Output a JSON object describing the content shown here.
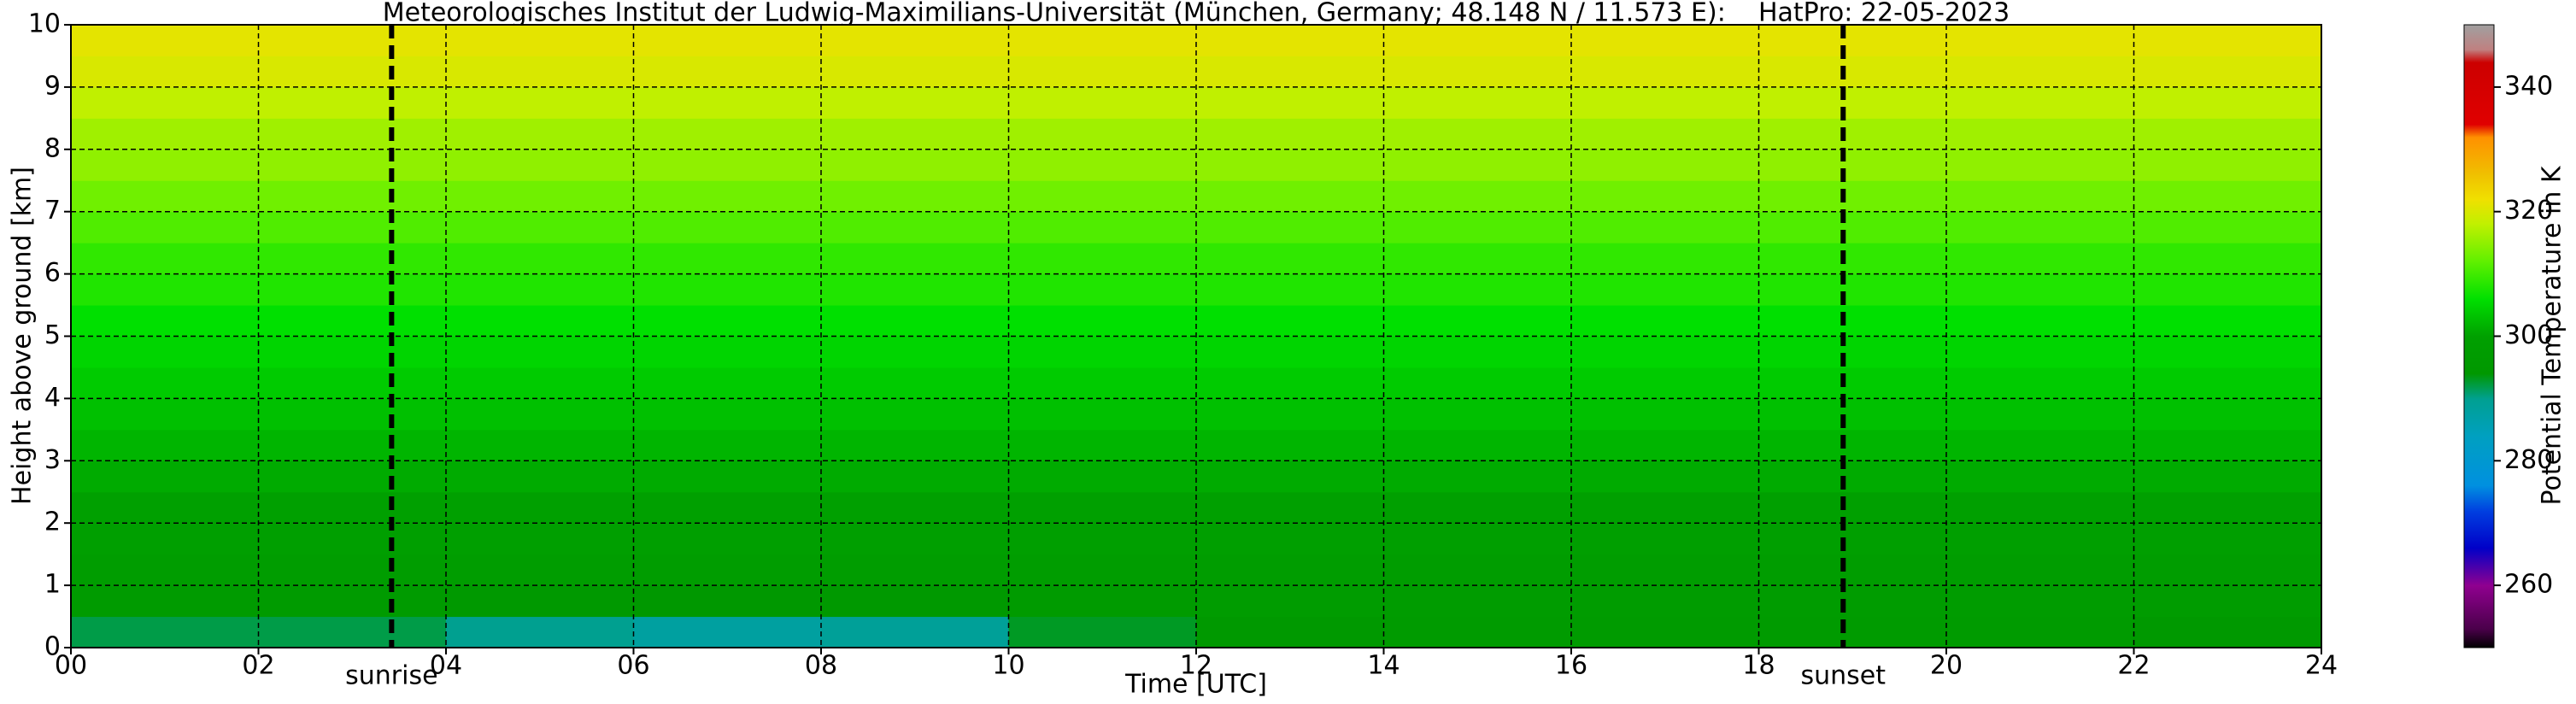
{
  "chart_data": {
    "type": "heatmap",
    "title": "Meteorologisches Institut der Ludwig-Maximilians-Universität (München, Germany; 48.148 N / 11.573 E):    HatPro: 22-05-2023",
    "x_label": "Time [UTC]",
    "y_label": "Height above ground [km]",
    "colorbar_label": "Potential Temperature in K",
    "x_edges": [
      0,
      2,
      4,
      6,
      8,
      10,
      12,
      14,
      16,
      18,
      20,
      22,
      24
    ],
    "y_edges": [
      0,
      0.5,
      1,
      1.5,
      2,
      2.5,
      3,
      3.5,
      4,
      4.5,
      5,
      5.5,
      6,
      6.5,
      7,
      7.5,
      8,
      8.5,
      9,
      9.5,
      10
    ],
    "z": [
      [
        292,
        292,
        290,
        288,
        289,
        293,
        295,
        296,
        296,
        296,
        296,
        295
      ],
      [
        296,
        296,
        295,
        294,
        295,
        296,
        297,
        297,
        297,
        297,
        297,
        297
      ],
      [
        298,
        298,
        298,
        298,
        298,
        298,
        298,
        298,
        298,
        298,
        298,
        298
      ],
      [
        299,
        299,
        299,
        299,
        299,
        299,
        299,
        299,
        299,
        299,
        299,
        299
      ],
      [
        300,
        300,
        300,
        300,
        300,
        300,
        300,
        300,
        300,
        300,
        300,
        300
      ],
      [
        301,
        301,
        301,
        301,
        301,
        301,
        301,
        301,
        301,
        301,
        301,
        301
      ],
      [
        302,
        302,
        302,
        302,
        302,
        302,
        302,
        302,
        302,
        302,
        302,
        302
      ],
      [
        303,
        303,
        303,
        303,
        303,
        303,
        303,
        303,
        303,
        303,
        303,
        303
      ],
      [
        304,
        304,
        304,
        304,
        304,
        304,
        304,
        304,
        304,
        304,
        304,
        304
      ],
      [
        305,
        305,
        305,
        305,
        305,
        305,
        305,
        305,
        305,
        305,
        305,
        305
      ],
      [
        306,
        306,
        306,
        306,
        306,
        306,
        306,
        306,
        306,
        306,
        306,
        306
      ],
      [
        308,
        308,
        308,
        308,
        308,
        308,
        308,
        308,
        308,
        308,
        308,
        308
      ],
      [
        309,
        309,
        309,
        309,
        309,
        309,
        309,
        309,
        309,
        309,
        309,
        309
      ],
      [
        311,
        311,
        311,
        311,
        311,
        311,
        311,
        311,
        311,
        311,
        311,
        311
      ],
      [
        313,
        313,
        313,
        313,
        313,
        313,
        313,
        313,
        313,
        313,
        313,
        313
      ],
      [
        315,
        315,
        315,
        315,
        315,
        315,
        315,
        315,
        315,
        315,
        315,
        315
      ],
      [
        316,
        316,
        316,
        316,
        316,
        316,
        316,
        316,
        316,
        316,
        316,
        316
      ],
      [
        318,
        318,
        318,
        318,
        318,
        318,
        318,
        318,
        318,
        318,
        318,
        318
      ],
      [
        320,
        320,
        320,
        320,
        320,
        320,
        320,
        320,
        320,
        320,
        320,
        320
      ],
      [
        321,
        321,
        321,
        321,
        321,
        321,
        321,
        321,
        321,
        321,
        321,
        321
      ]
    ],
    "xlim": [
      0,
      24
    ],
    "ylim": [
      0,
      10
    ],
    "xticks": [
      {
        "value": 0,
        "label": "00"
      },
      {
        "value": 2,
        "label": "02"
      },
      {
        "value": 4,
        "label": "04"
      },
      {
        "value": 6,
        "label": "06"
      },
      {
        "value": 8,
        "label": "08"
      },
      {
        "value": 10,
        "label": "10"
      },
      {
        "value": 12,
        "label": "12"
      },
      {
        "value": 14,
        "label": "14"
      },
      {
        "value": 16,
        "label": "16"
      },
      {
        "value": 18,
        "label": "18"
      },
      {
        "value": 20,
        "label": "20"
      },
      {
        "value": 22,
        "label": "22"
      },
      {
        "value": 24,
        "label": "24"
      }
    ],
    "yticks": [
      0,
      1,
      2,
      3,
      4,
      5,
      6,
      7,
      8,
      9,
      10
    ],
    "clim": [
      250,
      350
    ],
    "cticks": [
      260,
      280,
      300,
      320,
      340
    ],
    "colormap": [
      {
        "value": 250,
        "color": "#000000"
      },
      {
        "value": 253,
        "color": "#4a004a"
      },
      {
        "value": 260,
        "color": "#900090"
      },
      {
        "value": 266,
        "color": "#0000c8"
      },
      {
        "value": 272,
        "color": "#0040e0"
      },
      {
        "value": 276,
        "color": "#0090e0"
      },
      {
        "value": 284,
        "color": "#00a0c0"
      },
      {
        "value": 290,
        "color": "#00a090"
      },
      {
        "value": 294,
        "color": "#009800"
      },
      {
        "value": 300,
        "color": "#00a000"
      },
      {
        "value": 306,
        "color": "#00e000"
      },
      {
        "value": 312,
        "color": "#60f000"
      },
      {
        "value": 318,
        "color": "#c0f000"
      },
      {
        "value": 322,
        "color": "#f0e000"
      },
      {
        "value": 326,
        "color": "#f0c000"
      },
      {
        "value": 332,
        "color": "#ff9000"
      },
      {
        "value": 334,
        "color": "#e00000"
      },
      {
        "value": 344,
        "color": "#cc0000"
      },
      {
        "value": 346,
        "color": "#c08080"
      },
      {
        "value": 350,
        "color": "#a0a0a0"
      }
    ],
    "grid": true,
    "markers": [
      {
        "x": 3.42,
        "label": "sunrise"
      },
      {
        "x": 18.9,
        "label": "sunset"
      }
    ]
  }
}
